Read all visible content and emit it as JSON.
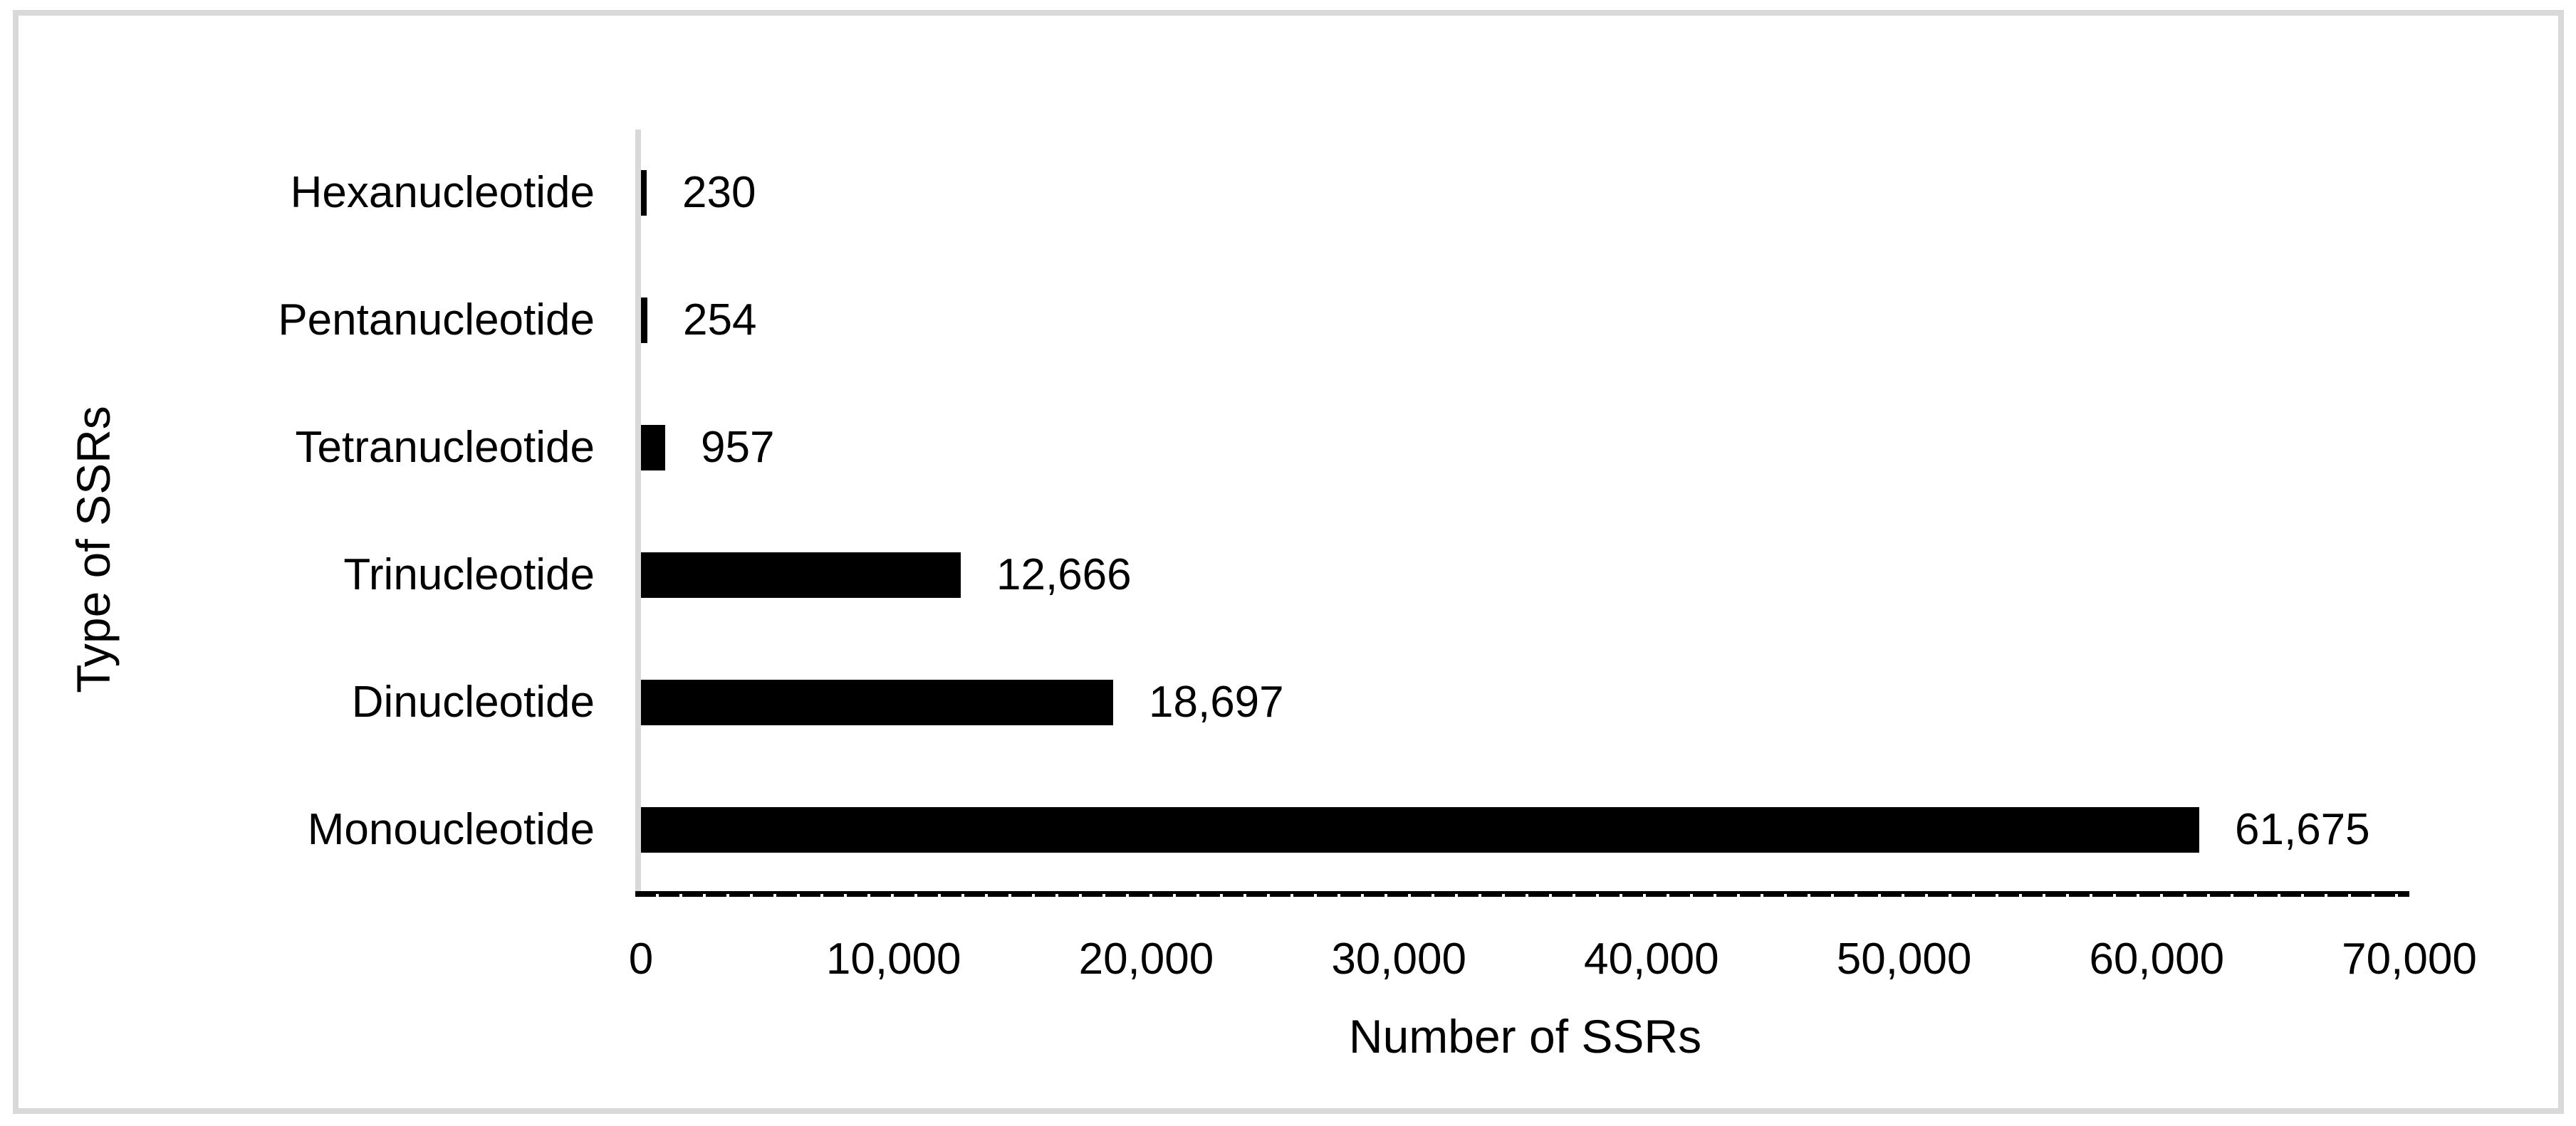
{
  "chart_data": {
    "type": "bar",
    "orientation": "horizontal",
    "title": "",
    "categories": [
      "Hexanucleotide",
      "Pentanucleotide",
      "Tetranucleotide",
      "Trinucleotide",
      "Dinucleotide",
      "Monoucleotide"
    ],
    "values": [
      230,
      254,
      957,
      12666,
      18697,
      61675
    ],
    "value_labels": [
      "230",
      "254",
      "957",
      "12,666",
      "18,697",
      "61,675"
    ],
    "xlabel": "Number of SSRs",
    "ylabel": "Type of SSRs",
    "xlim": [
      0,
      70000
    ],
    "xticks": [
      0,
      10000,
      20000,
      30000,
      40000,
      50000,
      60000,
      70000
    ],
    "xtick_labels": [
      "0",
      "10,000",
      "20,000",
      "30,000",
      "40,000",
      "50,000",
      "60,000",
      "70,000"
    ],
    "grid": false,
    "legend": false,
    "bar_color": "#000000",
    "axis_line_color": "#d9d9d9",
    "baseline_color": "#000000",
    "frame_color": "#d9d9d9",
    "text_color": "#000000",
    "background_color": "#ffffff"
  }
}
